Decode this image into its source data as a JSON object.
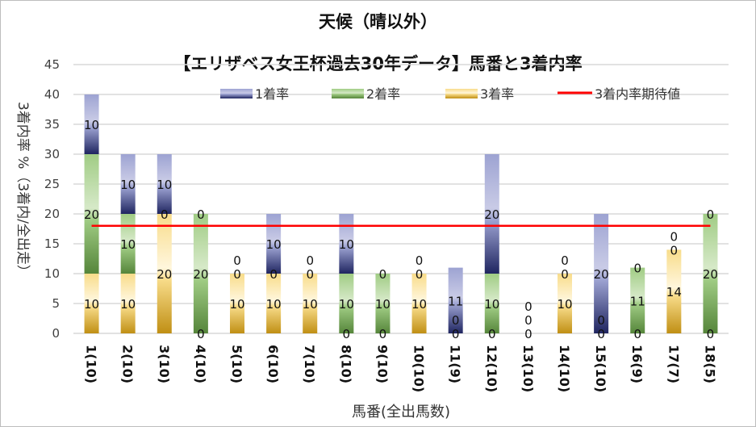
{
  "chart_data": {
    "type": "bar",
    "stacked": true,
    "title": "天候（晴以外）",
    "subtitle": "【エリザベス女王杯過去30年データ】馬番と3着内率",
    "xlabel": "馬番(全出馬数)",
    "ylabel": "3着内率 %（3着内/全出走）",
    "ylim": [
      0,
      45
    ],
    "yticks": [
      0,
      5,
      10,
      15,
      20,
      25,
      30,
      35,
      40,
      45
    ],
    "grid": true,
    "legend_position": "top",
    "categories": [
      "1(10)",
      "2(10)",
      "3(10)",
      "4(10)",
      "5(10)",
      "6(10)",
      "7(10)",
      "8(10)",
      "9(10)",
      "10(10)",
      "11(9)",
      "12(10)",
      "13(10)",
      "14(10)",
      "15(10)",
      "16(9)",
      "17(7)",
      "18(5)"
    ],
    "series": [
      {
        "name": "3着率",
        "color": "#c9961c",
        "values": [
          10,
          10,
          20,
          0,
          10,
          10,
          10,
          0,
          0,
          10,
          0,
          0,
          0,
          10,
          0,
          0,
          14,
          0
        ]
      },
      {
        "name": "2着率",
        "color": "#6a9a45",
        "values": [
          20,
          10,
          0,
          20,
          0,
          0,
          0,
          10,
          10,
          0,
          0,
          10,
          0,
          0,
          0,
          11,
          0,
          20
        ]
      },
      {
        "name": "1着率",
        "color": "#3f4a98",
        "values": [
          10,
          10,
          10,
          0,
          0,
          10,
          0,
          10,
          0,
          0,
          11,
          20,
          0,
          0,
          20,
          0,
          0,
          0
        ]
      }
    ],
    "reference_line": {
      "name": "3着内率期待値",
      "color": "#ff0000",
      "value": 18
    }
  }
}
